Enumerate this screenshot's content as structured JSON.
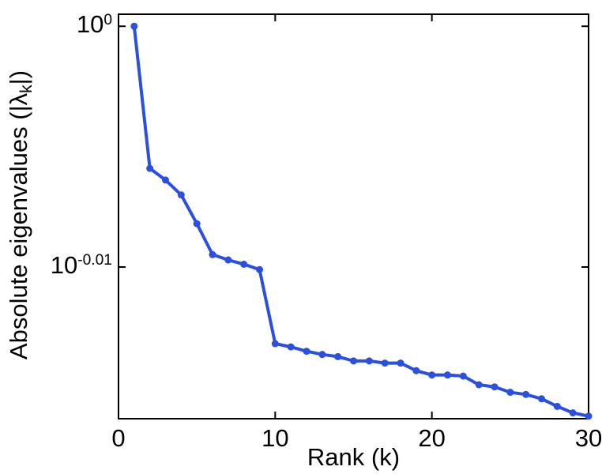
{
  "chart_data": {
    "type": "line",
    "title": "",
    "xlabel": "Rank (k)",
    "ylabel_text": "Absolute eigenvalues (|λk|)",
    "ylabel_parts": {
      "prefix": "Absolute eigenvalues (|λ",
      "sub": "k",
      "suffix": "|)"
    },
    "x": [
      1,
      2,
      3,
      4,
      5,
      6,
      7,
      8,
      9,
      10,
      11,
      12,
      13,
      14,
      15,
      16,
      17,
      18,
      19,
      20,
      21,
      22,
      23,
      24,
      25,
      26,
      27,
      28,
      29,
      30
    ],
    "values": [
      1.0,
      0.9865,
      0.9854,
      0.984,
      0.9813,
      0.9784,
      0.9779,
      0.9775,
      0.977,
      0.9701,
      0.9698,
      0.9694,
      0.9691,
      0.9689,
      0.9685,
      0.9685,
      0.9683,
      0.9683,
      0.9676,
      0.9672,
      0.9672,
      0.9671,
      0.9663,
      0.9661,
      0.9656,
      0.9654,
      0.965,
      0.9643,
      0.9637,
      0.9634
    ],
    "xlim": [
      0,
      30
    ],
    "xticks": [
      0,
      10,
      20,
      30
    ],
    "yscale": "log",
    "ytick_exponents": [
      0,
      -0.01
    ],
    "ytick_labels": [
      {
        "base": "10",
        "exp": "0"
      },
      {
        "base": "10",
        "exp": "-0.01"
      }
    ],
    "ylim_exponents": [
      0.0005,
      -0.0163
    ],
    "grid": false,
    "legend": null,
    "line_color": "#2b4fdf",
    "axis_color": "#000000",
    "marker": "circle"
  }
}
